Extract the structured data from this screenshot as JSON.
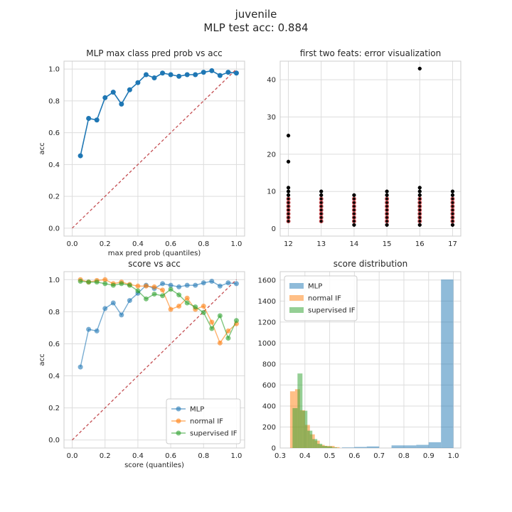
{
  "figure": {
    "title_line1": "juvenile",
    "title_line2": "MLP test acc: 0.884"
  },
  "chart_data": [
    {
      "type": "line",
      "title": "MLP max class pred prob vs acc",
      "xlabel": "max pred prob (quantiles)",
      "ylabel": "acc",
      "xlim": [
        -0.05,
        1.05
      ],
      "ylim": [
        -0.05,
        1.05
      ],
      "xticks": [
        0.0,
        0.2,
        0.4,
        0.6,
        0.8,
        1.0
      ],
      "yticks": [
        0.0,
        0.2,
        0.4,
        0.6,
        0.8,
        1.0
      ],
      "grid": true,
      "series": [
        {
          "color": "#1f77b4",
          "x": [
            0.05,
            0.1,
            0.15,
            0.2,
            0.25,
            0.3,
            0.35,
            0.4,
            0.45,
            0.5,
            0.55,
            0.6,
            0.65,
            0.7,
            0.75,
            0.8,
            0.85,
            0.9,
            0.95,
            1.0
          ],
          "y": [
            0.455,
            0.69,
            0.68,
            0.82,
            0.855,
            0.78,
            0.87,
            0.915,
            0.965,
            0.945,
            0.975,
            0.965,
            0.955,
            0.965,
            0.965,
            0.98,
            0.99,
            0.96,
            0.98,
            0.975
          ]
        }
      ],
      "reference_line": {
        "x": [
          0.0,
          1.0
        ],
        "y": [
          0.0,
          1.0
        ],
        "color": "#c44e52",
        "style": "dashed"
      }
    },
    {
      "type": "scatter",
      "title": "first two feats: error visualization",
      "xlabel": "",
      "ylabel": "",
      "xlim": [
        11.75,
        17.25
      ],
      "ylim": [
        -2,
        45
      ],
      "xticks": [
        12,
        13,
        14,
        15,
        16,
        17
      ],
      "yticks": [
        0,
        10,
        20,
        30,
        40
      ],
      "grid": true,
      "points": [
        {
          "x": 12,
          "ys": [
            2,
            3,
            4,
            5,
            6,
            7,
            8,
            9,
            10,
            11,
            18,
            25
          ]
        },
        {
          "x": 13,
          "ys": [
            2,
            3,
            4,
            5,
            6,
            7,
            8,
            9,
            10
          ]
        },
        {
          "x": 14,
          "ys": [
            1,
            2,
            3,
            4,
            5,
            6,
            7,
            8,
            9
          ]
        },
        {
          "x": 15,
          "ys": [
            1,
            2,
            3,
            4,
            5,
            6,
            7,
            8,
            9,
            10
          ]
        },
        {
          "x": 16,
          "ys": [
            1,
            2,
            3,
            4,
            5,
            6,
            7,
            8,
            9,
            10,
            11,
            43
          ]
        },
        {
          "x": 17,
          "ys": [
            1,
            2,
            3,
            4,
            5,
            6,
            7,
            8,
            9,
            10
          ]
        }
      ],
      "point_color": "#000000",
      "error_edge_color": "#c44e52"
    },
    {
      "type": "line",
      "title": "score vs acc",
      "xlabel": "score (quantiles)",
      "ylabel": "acc",
      "xlim": [
        -0.05,
        1.05
      ],
      "ylim": [
        -0.05,
        1.05
      ],
      "xticks": [
        0.0,
        0.2,
        0.4,
        0.6,
        0.8,
        1.0
      ],
      "yticks": [
        0.0,
        0.2,
        0.4,
        0.6,
        0.8,
        1.0
      ],
      "grid": true,
      "legend": "lower-right",
      "x": [
        0.05,
        0.1,
        0.15,
        0.2,
        0.25,
        0.3,
        0.35,
        0.4,
        0.45,
        0.5,
        0.55,
        0.6,
        0.65,
        0.7,
        0.75,
        0.8,
        0.85,
        0.9,
        0.95,
        1.0
      ],
      "series": [
        {
          "name": "MLP",
          "color": "#1f77b4",
          "values": [
            0.455,
            0.69,
            0.68,
            0.82,
            0.855,
            0.78,
            0.87,
            0.915,
            0.965,
            0.945,
            0.975,
            0.965,
            0.955,
            0.965,
            0.965,
            0.98,
            0.99,
            0.96,
            0.98,
            0.975
          ]
        },
        {
          "name": "normal IF",
          "color": "#ff7f0e",
          "values": [
            1.0,
            0.985,
            0.995,
            1.0,
            0.975,
            0.985,
            0.97,
            0.96,
            0.96,
            0.955,
            0.935,
            0.815,
            0.835,
            0.885,
            0.815,
            0.835,
            0.735,
            0.605,
            0.68,
            0.725
          ]
        },
        {
          "name": "supervised IF",
          "color": "#2ca02c",
          "values": [
            0.99,
            0.985,
            0.985,
            0.975,
            0.965,
            0.975,
            0.965,
            0.93,
            0.88,
            0.91,
            0.9,
            0.94,
            0.905,
            0.855,
            0.83,
            0.795,
            0.695,
            0.775,
            0.635,
            0.745
          ]
        }
      ],
      "reference_line": {
        "x": [
          0.0,
          1.0
        ],
        "y": [
          0.0,
          1.0
        ],
        "color": "#c44e52",
        "style": "dashed"
      }
    },
    {
      "type": "bar",
      "title": "score distribution",
      "xlabel": "",
      "ylabel": "",
      "xlim": [
        0.3,
        1.03
      ],
      "ylim": [
        0,
        1680
      ],
      "xticks": [
        0.3,
        0.4,
        0.5,
        0.6,
        0.7,
        0.8,
        0.9,
        1.0
      ],
      "yticks": [
        0,
        200,
        400,
        600,
        800,
        1000,
        1200,
        1400,
        1600
      ],
      "grid": true,
      "legend": "top-left",
      "series": [
        {
          "name": "MLP",
          "color": "#1f77b4",
          "bins": [
            [
              0.55,
              0.6,
              5
            ],
            [
              0.6,
              0.65,
              10
            ],
            [
              0.65,
              0.7,
              15
            ],
            [
              0.75,
              0.8,
              25
            ],
            [
              0.8,
              0.85,
              25
            ],
            [
              0.85,
              0.9,
              30
            ],
            [
              0.9,
              0.95,
              55
            ],
            [
              0.95,
              1.0,
              1605
            ]
          ]
        },
        {
          "name": "normal IF",
          "color": "#ff7f0e",
          "bins": [
            [
              0.34,
              0.36,
              540
            ],
            [
              0.36,
              0.38,
              560
            ],
            [
              0.38,
              0.4,
              360
            ],
            [
              0.4,
              0.42,
              220
            ],
            [
              0.42,
              0.44,
              130
            ],
            [
              0.44,
              0.46,
              70
            ],
            [
              0.46,
              0.48,
              30
            ],
            [
              0.48,
              0.5,
              20
            ],
            [
              0.5,
              0.52,
              20
            ],
            [
              0.52,
              0.54,
              8
            ]
          ]
        },
        {
          "name": "supervised IF",
          "color": "#2ca02c",
          "bins": [
            [
              0.35,
              0.37,
              380
            ],
            [
              0.37,
              0.39,
              710
            ],
            [
              0.39,
              0.41,
              355
            ],
            [
              0.41,
              0.43,
              165
            ],
            [
              0.43,
              0.45,
              85
            ],
            [
              0.45,
              0.47,
              40
            ],
            [
              0.47,
              0.49,
              20
            ],
            [
              0.49,
              0.51,
              15
            ],
            [
              0.51,
              0.53,
              5
            ]
          ]
        }
      ]
    }
  ]
}
